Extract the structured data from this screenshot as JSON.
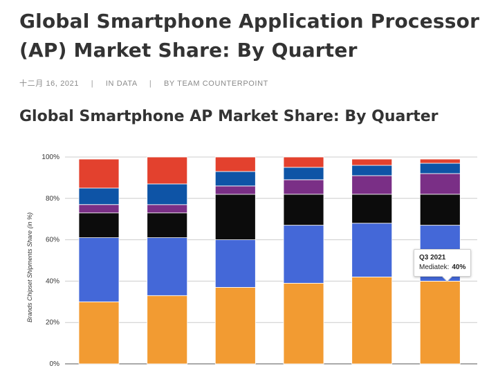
{
  "article": {
    "title": "Global Smartphone Application Processor (AP) Market Share: By Quarter",
    "date": "十二月 16, 2021",
    "separator": "|",
    "category": "IN DATA",
    "author": "BY TEAM COUNTERPOINT",
    "chart_heading": "Global Smartphone AP Market Share: By Quarter"
  },
  "tooltip": {
    "title": "Q3 2021",
    "label": "Mediatek:",
    "value": "40%"
  },
  "chart_data": {
    "type": "bar",
    "stacked": true,
    "ylabel": "Brands Chipset Shipments Share (in %)",
    "ylim": [
      0,
      100
    ],
    "yticks": [
      "0%",
      "20%",
      "40%",
      "60%",
      "80%",
      "100%"
    ],
    "grid": true,
    "categories": [
      "",
      "",
      "",
      "",
      "",
      "Q3 2021"
    ],
    "series": [
      {
        "name": "Mediatek",
        "color": "#f29b32",
        "values": [
          30,
          33,
          37,
          39,
          42,
          40
        ]
      },
      {
        "name": "",
        "color": "#4468d8",
        "values": [
          31,
          28,
          23,
          28,
          26,
          27
        ]
      },
      {
        "name": "",
        "color": "#0c0c0c",
        "values": [
          12,
          12,
          22,
          15,
          14,
          15
        ]
      },
      {
        "name": "",
        "color": "#7a2f86",
        "values": [
          4,
          4,
          4,
          7,
          9,
          10
        ]
      },
      {
        "name": "",
        "color": "#0e54a6",
        "values": [
          8,
          10,
          7,
          6,
          5,
          5
        ]
      },
      {
        "name": "",
        "color": "#e3412e",
        "values": [
          14,
          13,
          7,
          5,
          3,
          2
        ]
      }
    ]
  }
}
